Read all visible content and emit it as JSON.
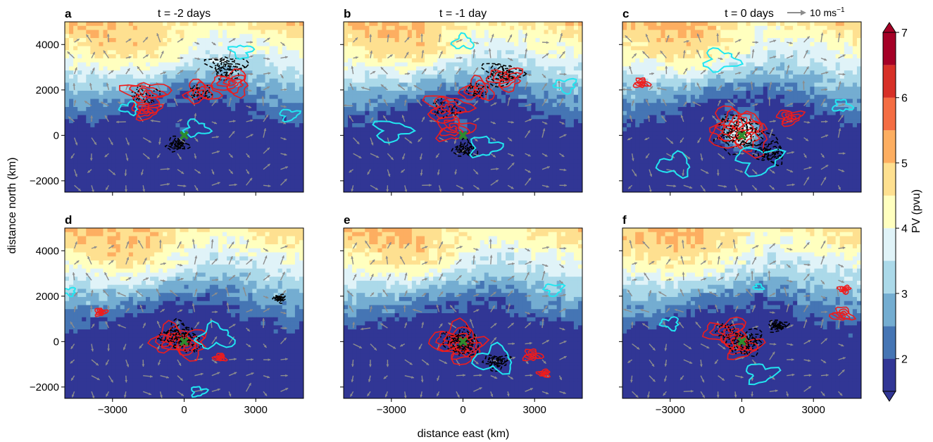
{
  "chart_data": {
    "type": "heatmap",
    "figure": {
      "xlabel": "distance east (km)",
      "ylabel": "distance north (km)",
      "xlim": [
        -5000,
        5000
      ],
      "ylim": [
        -2500,
        5000
      ],
      "xticks": [
        -3000,
        0,
        3000
      ],
      "yticks": [
        -2000,
        0,
        2000,
        4000
      ],
      "xtick_labels": [
        "−3000",
        "0",
        "3000"
      ],
      "ytick_labels": [
        "−2000",
        "0",
        "2000",
        "4000"
      ],
      "quiver_key_label": "10 ms",
      "quiver_key_exp": "−1"
    },
    "colorbar": {
      "label": "PV (pvu)",
      "ticks": [
        2,
        3,
        4,
        5,
        6,
        7
      ],
      "tick_labels": [
        "2",
        "3",
        "4",
        "5",
        "6",
        "7"
      ],
      "range": [
        1.5,
        7
      ],
      "extend": "both",
      "levels": [
        1.5,
        2,
        2.5,
        3,
        3.5,
        4,
        4.5,
        5,
        5.5,
        6,
        6.5,
        7
      ],
      "colors": [
        "#313695",
        "#4575b4",
        "#74add1",
        "#abd9e9",
        "#e0f3f8",
        "#ffffbf",
        "#fee090",
        "#fdae61",
        "#f46d43",
        "#d73027",
        "#a50026"
      ],
      "under_color": "#313695",
      "over_color": "#a50026"
    },
    "panels": [
      {
        "letter": "a",
        "title": "t = -2 days",
        "red": [
          [
            -1600,
            1800,
            0.7
          ],
          [
            700,
            1900,
            0.55
          ],
          [
            2000,
            2300,
            0.6
          ],
          [
            -1600,
            1100,
            0.45
          ]
        ],
        "cyan": [
          [
            2400,
            3700,
            0.35
          ],
          [
            500,
            300,
            0.4
          ],
          [
            -2300,
            1200,
            0.3
          ],
          [
            4400,
            900,
            0.3
          ]
        ],
        "black": [
          [
            1800,
            3000,
            0.6
          ],
          [
            -300,
            -400,
            0.35
          ]
        ],
        "marker": [
          0,
          0
        ]
      },
      {
        "letter": "b",
        "title": "t = -1 day",
        "red": [
          [
            -700,
            1200,
            0.7
          ],
          [
            600,
            2000,
            0.55
          ],
          [
            1800,
            2500,
            0.55
          ],
          [
            -400,
            300,
            0.6
          ]
        ],
        "cyan": [
          [
            -3000,
            200,
            0.55
          ],
          [
            0,
            4100,
            0.35
          ],
          [
            4300,
            2200,
            0.35
          ],
          [
            900,
            -500,
            0.5
          ]
        ],
        "black": [
          [
            1600,
            2700,
            0.6
          ],
          [
            100,
            -600,
            0.4
          ]
        ],
        "marker": [
          0,
          0
        ]
      },
      {
        "letter": "c",
        "title": "t = 0 days",
        "red": [
          [
            -300,
            500,
            0.8
          ],
          [
            0,
            0,
            0.95
          ],
          [
            2000,
            800,
            0.4
          ],
          [
            -4200,
            2300,
            0.25
          ]
        ],
        "cyan": [
          [
            -900,
            3300,
            0.55
          ],
          [
            -2800,
            -1300,
            0.55
          ],
          [
            700,
            -1100,
            0.7
          ],
          [
            4200,
            1300,
            0.3
          ]
        ],
        "black": [
          [
            0,
            0,
            0.9
          ],
          [
            1200,
            -800,
            0.5
          ]
        ],
        "marker": [
          0,
          0
        ]
      },
      {
        "letter": "d",
        "title": "",
        "red": [
          [
            -500,
            100,
            0.7
          ],
          [
            100,
            -100,
            0.7
          ],
          [
            -3500,
            1300,
            0.2
          ],
          [
            1500,
            -700,
            0.2
          ]
        ],
        "cyan": [
          [
            1300,
            200,
            0.6
          ],
          [
            -4800,
            2200,
            0.2
          ],
          [
            600,
            -2200,
            0.25
          ]
        ],
        "black": [
          [
            -200,
            300,
            0.6
          ],
          [
            4000,
            1900,
            0.2
          ]
        ],
        "marker": [
          0,
          0
        ]
      },
      {
        "letter": "e",
        "title": "",
        "red": [
          [
            -300,
            100,
            0.8
          ],
          [
            0,
            -300,
            0.7
          ],
          [
            2900,
            -600,
            0.3
          ],
          [
            3400,
            -1400,
            0.2
          ]
        ],
        "cyan": [
          [
            1300,
            -800,
            0.65
          ],
          [
            3800,
            2300,
            0.3
          ]
        ],
        "black": [
          [
            0,
            0,
            0.6
          ],
          [
            1400,
            -900,
            0.4
          ]
        ],
        "marker": [
          0,
          0
        ]
      },
      {
        "letter": "f",
        "title": "",
        "red": [
          [
            -600,
            400,
            0.7
          ],
          [
            0,
            -200,
            0.6
          ],
          [
            4200,
            1200,
            0.35
          ],
          [
            4300,
            2300,
            0.2
          ]
        ],
        "cyan": [
          [
            -3000,
            800,
            0.3
          ],
          [
            800,
            -1400,
            0.5
          ],
          [
            700,
            2400,
            0.15
          ]
        ],
        "black": [
          [
            200,
            0,
            0.6
          ],
          [
            1500,
            700,
            0.3
          ]
        ],
        "marker": [
          0,
          0
        ]
      }
    ]
  }
}
